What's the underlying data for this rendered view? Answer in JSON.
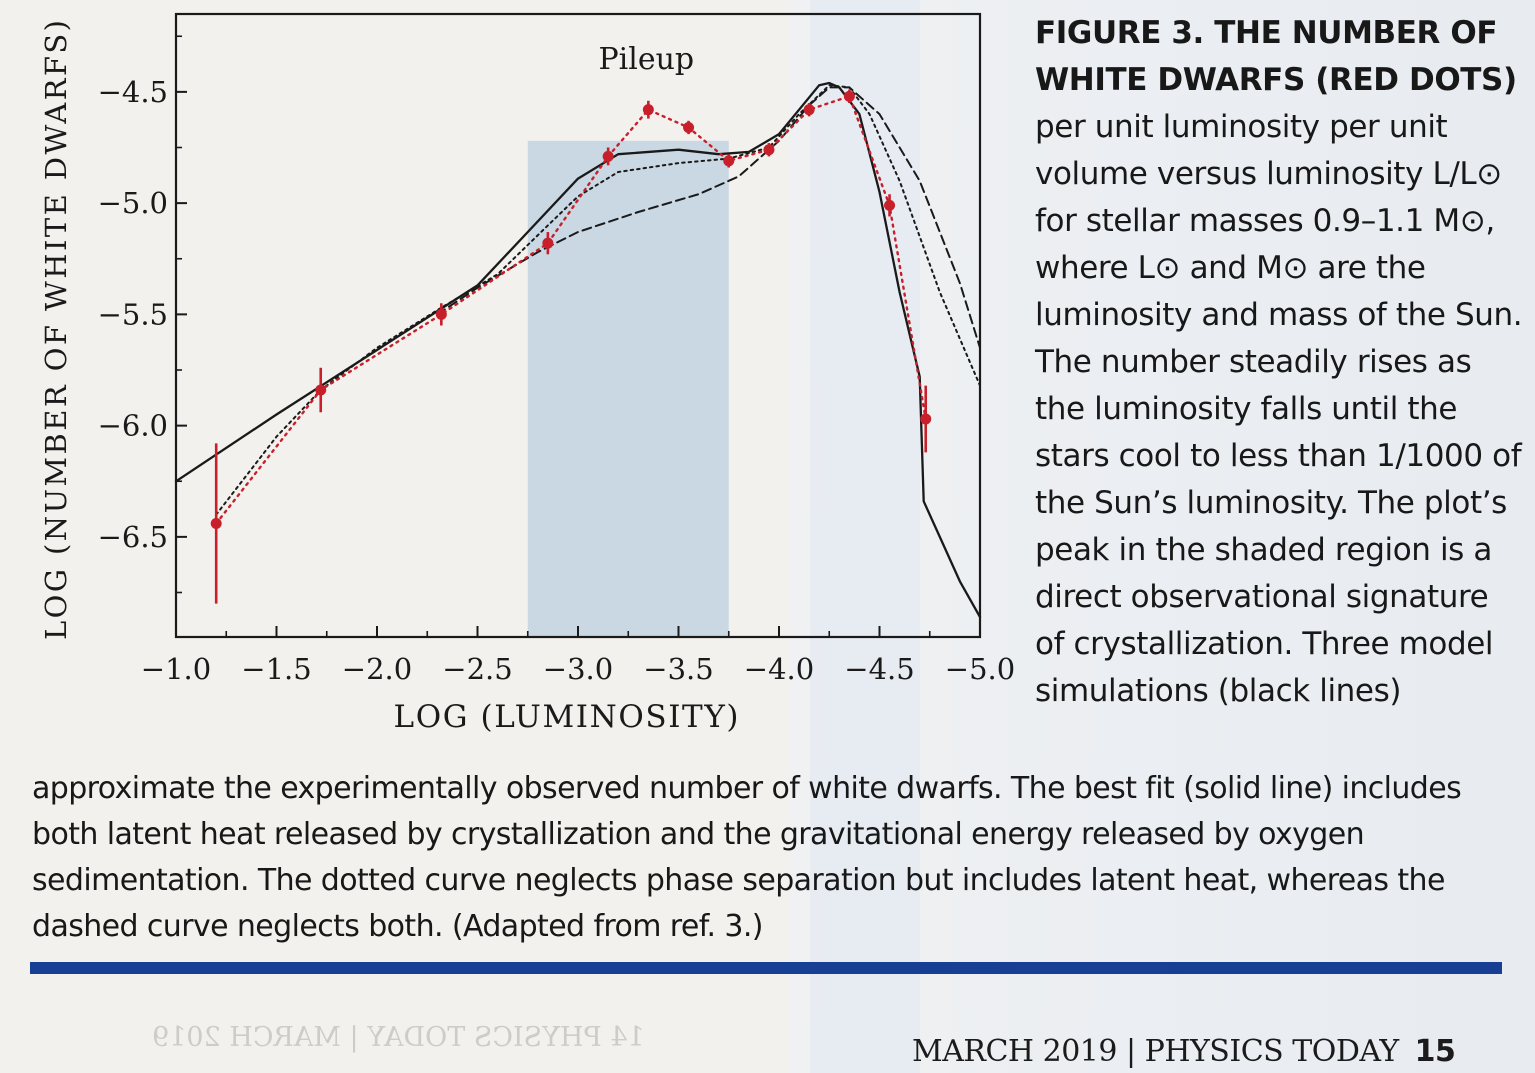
{
  "caption": {
    "figure_label": "FIGURE 3. THE NUMBER OF WHITE DWARFS (RED DOTS)",
    "head_text": "per unit luminosity per unit volume versus luminosity L/L⊙ for stellar masses 0.9–1.1 M⊙, where L⊙ and M⊙ are the luminosity and mass of the Sun. The number steadily rises as the luminosity falls until the stars cool to less than 1/1000 of the Sun’s luminosity. The plot’s peak in the shaded region is a direct observational signature of crystallization. Three model simulations (black lines)",
    "tail_text": "approximate the experimentally observed number of white dwarfs. The best fit (solid line) includes both latent heat released by crystallization and the gravitational energy released by oxygen sedimentation. The dotted curve neglects phase separation but includes latent heat, whereas the dashed curve neglects both. (Adapted from ref. 3.)"
  },
  "footer": {
    "running_head": "MARCH 2019 | PHYSICS TODAY",
    "page_number": "15",
    "mirrored_bleed": "14 PHYSICS TODAY | MARCH 2019"
  },
  "colors": {
    "observed": "#c8202b",
    "model": "#1a1a1a",
    "shade": "#a9c2dd",
    "rule": "#173f93"
  },
  "chart_data": {
    "type": "line",
    "xlabel": "LOG (LUMINOSITY)",
    "ylabel": "LOG (NUMBER OF WHITE DWARFS)",
    "xlim": [
      -1.0,
      -5.0
    ],
    "ylim": [
      -6.95,
      -4.15
    ],
    "x_ticks": [
      -1.0,
      -1.5,
      -2.0,
      -2.5,
      -3.0,
      -3.5,
      -4.0,
      -4.5,
      -5.0
    ],
    "x_tick_labels": [
      "−1.0",
      "−1.5",
      "−2.0",
      "−2.5",
      "−3.0",
      "−3.5",
      "−4.0",
      "−4.5",
      "−5.0"
    ],
    "y_ticks": [
      -4.5,
      -5.0,
      -5.5,
      -6.0,
      -6.5
    ],
    "y_tick_labels": [
      "−4.5",
      "−5.0",
      "−5.5",
      "−6.0",
      "−6.5"
    ],
    "shaded_region": [
      -2.75,
      -3.75
    ],
    "annotation": {
      "text": "Pileup",
      "x": -3.3,
      "y": -4.37
    },
    "observed": {
      "name": "Observed white dwarfs",
      "points": [
        {
          "x": -1.2,
          "y": -6.44,
          "err": 0.36
        },
        {
          "x": -1.72,
          "y": -5.84,
          "err": 0.1
        },
        {
          "x": -2.32,
          "y": -5.5,
          "err": 0.05
        },
        {
          "x": -2.85,
          "y": -5.18,
          "err": 0.05
        },
        {
          "x": -3.15,
          "y": -4.79,
          "err": 0.04
        },
        {
          "x": -3.35,
          "y": -4.58,
          "err": 0.04
        },
        {
          "x": -3.55,
          "y": -4.66,
          "err": 0.03
        },
        {
          "x": -3.75,
          "y": -4.81,
          "err": 0.03
        },
        {
          "x": -3.95,
          "y": -4.76,
          "err": 0.03
        },
        {
          "x": -4.15,
          "y": -4.58,
          "err": 0.03
        },
        {
          "x": -4.35,
          "y": -4.52,
          "err": 0.03
        },
        {
          "x": -4.55,
          "y": -5.01,
          "err": 0.05
        },
        {
          "x": -4.73,
          "y": -5.97,
          "err": 0.15
        }
      ]
    },
    "series": [
      {
        "name": "Best fit: latent heat + sedimentation (solid)",
        "style": "solid",
        "x": [
          -1.0,
          -1.5,
          -2.0,
          -2.5,
          -2.75,
          -3.0,
          -3.2,
          -3.5,
          -3.7,
          -3.85,
          -4.0,
          -4.1,
          -4.2,
          -4.25,
          -4.3,
          -4.4,
          -4.5,
          -4.6,
          -4.7,
          -4.72,
          -4.8,
          -4.9,
          -5.0
        ],
        "y": [
          -6.25,
          -5.95,
          -5.66,
          -5.37,
          -5.13,
          -4.89,
          -4.78,
          -4.76,
          -4.78,
          -4.77,
          -4.69,
          -4.58,
          -4.47,
          -4.46,
          -4.48,
          -4.6,
          -4.95,
          -5.4,
          -5.78,
          -6.34,
          -6.5,
          -6.7,
          -6.86
        ]
      },
      {
        "name": "Latent heat only (dotted)",
        "style": "dotted",
        "x": [
          -1.2,
          -1.5,
          -1.72,
          -2.0,
          -2.32,
          -2.6,
          -2.85,
          -3.0,
          -3.2,
          -3.5,
          -3.75,
          -3.95,
          -4.1,
          -4.25,
          -4.35,
          -4.45,
          -4.6,
          -4.8,
          -5.0
        ],
        "y": [
          -6.4,
          -6.05,
          -5.84,
          -5.65,
          -5.47,
          -5.32,
          -5.1,
          -4.97,
          -4.86,
          -4.82,
          -4.8,
          -4.75,
          -4.6,
          -4.47,
          -4.48,
          -4.6,
          -4.9,
          -5.4,
          -5.82
        ]
      },
      {
        "name": "Neither effect (dashed)",
        "style": "dashed",
        "x": [
          -2.3,
          -2.5,
          -2.8,
          -3.0,
          -3.3,
          -3.6,
          -3.8,
          -4.0,
          -4.15,
          -4.25,
          -4.35,
          -4.5,
          -4.7,
          -4.9,
          -5.0
        ],
        "y": [
          -5.5,
          -5.38,
          -5.22,
          -5.13,
          -5.04,
          -4.96,
          -4.88,
          -4.72,
          -4.56,
          -4.48,
          -4.48,
          -4.6,
          -4.9,
          -5.36,
          -5.65
        ]
      }
    ]
  }
}
